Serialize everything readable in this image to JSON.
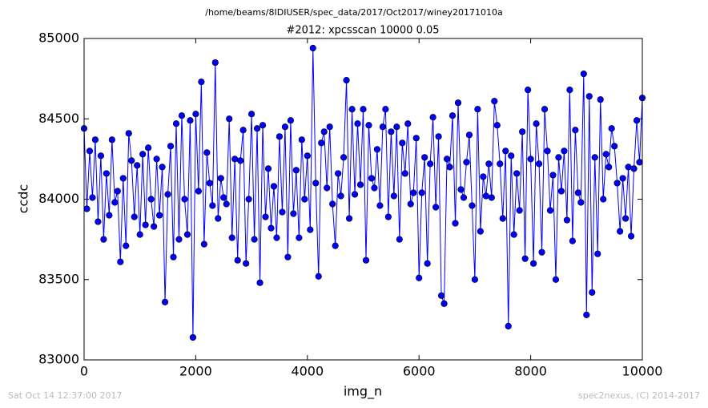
{
  "chart_data": {
    "type": "line",
    "title": "/home/beams/8IDIUSER/spec_data/2017/Oct2017/winey20171010a",
    "subtitle": "#2012: xpcsscan 10000 0.05",
    "xlabel": "img_n",
    "ylabel": "ccdc",
    "footer_left": "Sat Oct 14 12:37:00 2017",
    "footer_right": "spec2nexus, (C) 2014-2017",
    "color": "#0000ff",
    "xlim": [
      0,
      10000
    ],
    "xticks": [
      0,
      2000,
      4000,
      6000,
      8000,
      10000
    ],
    "ylim": [
      83000,
      85000
    ],
    "yticks": [
      83000,
      83500,
      84000,
      84500,
      85000
    ],
    "x": [
      0,
      50,
      100,
      150,
      200,
      250,
      300,
      350,
      400,
      450,
      500,
      550,
      600,
      650,
      700,
      750,
      800,
      850,
      900,
      950,
      1000,
      1050,
      1100,
      1150,
      1200,
      1250,
      1300,
      1350,
      1400,
      1450,
      1500,
      1550,
      1600,
      1650,
      1700,
      1750,
      1800,
      1850,
      1900,
      1950,
      2000,
      2050,
      2100,
      2150,
      2200,
      2250,
      2300,
      2350,
      2400,
      2450,
      2500,
      2550,
      2600,
      2650,
      2700,
      2750,
      2800,
      2850,
      2900,
      2950,
      3000,
      3050,
      3100,
      3150,
      3200,
      3250,
      3300,
      3350,
      3400,
      3450,
      3500,
      3550,
      3600,
      3650,
      3700,
      3750,
      3800,
      3850,
      3900,
      3950,
      4000,
      4050,
      4100,
      4150,
      4200,
      4250,
      4300,
      4350,
      4400,
      4450,
      4500,
      4550,
      4600,
      4650,
      4700,
      4750,
      4800,
      4850,
      4900,
      4950,
      5000,
      5050,
      5100,
      5150,
      5200,
      5250,
      5300,
      5350,
      5400,
      5450,
      5500,
      5550,
      5600,
      5650,
      5700,
      5750,
      5800,
      5850,
      5900,
      5950,
      6000,
      6050,
      6100,
      6150,
      6200,
      6250,
      6300,
      6350,
      6400,
      6450,
      6500,
      6550,
      6600,
      6650,
      6700,
      6750,
      6800,
      6850,
      6900,
      6950,
      7000,
      7050,
      7100,
      7150,
      7200,
      7250,
      7300,
      7350,
      7400,
      7450,
      7500,
      7550,
      7600,
      7650,
      7700,
      7750,
      7800,
      7850,
      7900,
      7950,
      8000,
      8050,
      8100,
      8150,
      8200,
      8250,
      8300,
      8350,
      8400,
      8450,
      8500,
      8550,
      8600,
      8650,
      8700,
      8750,
      8800,
      8850,
      8900,
      8950,
      9000,
      9050,
      9100,
      9150,
      9200,
      9250,
      9300,
      9350,
      9400,
      9450,
      9500,
      9550,
      9600,
      9650,
      9700,
      9750,
      9800,
      9850,
      9900,
      9950,
      10000
    ],
    "values": [
      84440,
      83940,
      84300,
      84010,
      84370,
      83860,
      84270,
      83750,
      84160,
      83900,
      84370,
      83980,
      84050,
      83610,
      84130,
      83710,
      84410,
      84240,
      83890,
      84210,
      83780,
      84280,
      83840,
      84320,
      84000,
      83830,
      84250,
      83900,
      84200,
      83360,
      84030,
      84330,
      83640,
      84470,
      83750,
      84520,
      84000,
      83780,
      84490,
      83140,
      84530,
      84050,
      84730,
      83720,
      84290,
      84100,
      83960,
      84850,
      83880,
      84130,
      84010,
      83970,
      84500,
      83760,
      84250,
      83620,
      84240,
      84430,
      83600,
      84000,
      84530,
      83750,
      84440,
      83480,
      84460,
      83890,
      84190,
      83820,
      84080,
      83760,
      84390,
      83920,
      84450,
      83640,
      84490,
      83910,
      84180,
      83760,
      84370,
      84000,
      84270,
      83810,
      84940,
      84100,
      83520,
      84350,
      84420,
      84070,
      84450,
      83970,
      83710,
      84160,
      84020,
      84260,
      84740,
      83880,
      84560,
      84030,
      84470,
      84090,
      84560,
      83620,
      84460,
      84130,
      84070,
      84310,
      83960,
      84450,
      84560,
      83890,
      84420,
      84020,
      84450,
      83750,
      84350,
      84160,
      84470,
      83970,
      84040,
      84380,
      83510,
      84040,
      84260,
      83600,
      84220,
      84510,
      83950,
      84390,
      83400,
      83350,
      84250,
      84200,
      84520,
      83850,
      84600,
      84060,
      84010,
      84230,
      84400,
      83960,
      83500,
      84560,
      83800,
      84140,
      84020,
      84220,
      84010,
      84610,
      84460,
      84220,
      83880,
      84300,
      83210,
      84270,
      83780,
      84160,
      83930,
      84420,
      83630,
      84680,
      84250,
      83600,
      84470,
      84220,
      83670,
      84560,
      84300,
      83930,
      84150,
      83500,
      84260,
      84050,
      84300,
      83870,
      84680,
      83740,
      84430,
      84040,
      83980,
      84780,
      83280,
      84640,
      83420,
      84260,
      83660,
      84620,
      84000,
      84280,
      84200,
      84440,
      84330,
      84100,
      83800,
      84130,
      83880,
      84200,
      83770,
      84190,
      84490,
      84230,
      84630
    ]
  }
}
